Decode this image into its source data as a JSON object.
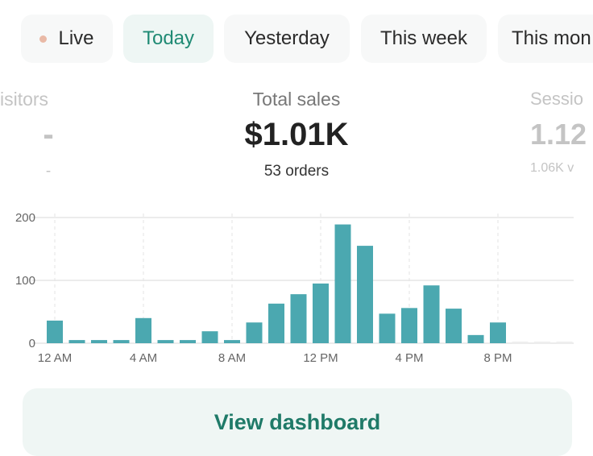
{
  "filters": [
    {
      "label": "Live",
      "icon": "live-dot-icon"
    },
    {
      "label": "Today",
      "active": true
    },
    {
      "label": "Yesterday"
    },
    {
      "label": "This week"
    },
    {
      "label": "This mon"
    }
  ],
  "metrics": {
    "visitors": {
      "label": "isitors",
      "value": "-",
      "sub": "-"
    },
    "sales": {
      "label": "Total sales",
      "value": "$1.01K",
      "sub": "53 orders"
    },
    "sessions": {
      "label": "Sessio",
      "value": "1.12",
      "sub": "1.06K v"
    }
  },
  "chart_data": {
    "type": "bar",
    "categories": [
      "12 AM",
      "1 AM",
      "2 AM",
      "3 AM",
      "4 AM",
      "5 AM",
      "6 AM",
      "7 AM",
      "8 AM",
      "9 AM",
      "10 AM",
      "11 AM",
      "12 PM",
      "1 PM",
      "2 PM",
      "3 PM",
      "4 PM",
      "5 PM",
      "6 PM",
      "7 PM",
      "8 PM",
      "9 PM",
      "10 PM",
      "11 PM"
    ],
    "values": [
      36,
      5,
      5,
      5,
      40,
      5,
      5,
      19,
      5,
      33,
      63,
      78,
      95,
      189,
      155,
      47,
      56,
      92,
      55,
      13,
      33,
      0,
      0,
      0
    ],
    "x_tick_labels": [
      "12 AM",
      "4 AM",
      "8 AM",
      "12 PM",
      "4 PM",
      "8 PM"
    ],
    "y_tick_labels": [
      "0",
      "100",
      "200"
    ],
    "ylim": [
      0,
      200
    ],
    "grid": true,
    "bar_color": "#4ba8b0"
  },
  "button": {
    "label": "View dashboard"
  }
}
